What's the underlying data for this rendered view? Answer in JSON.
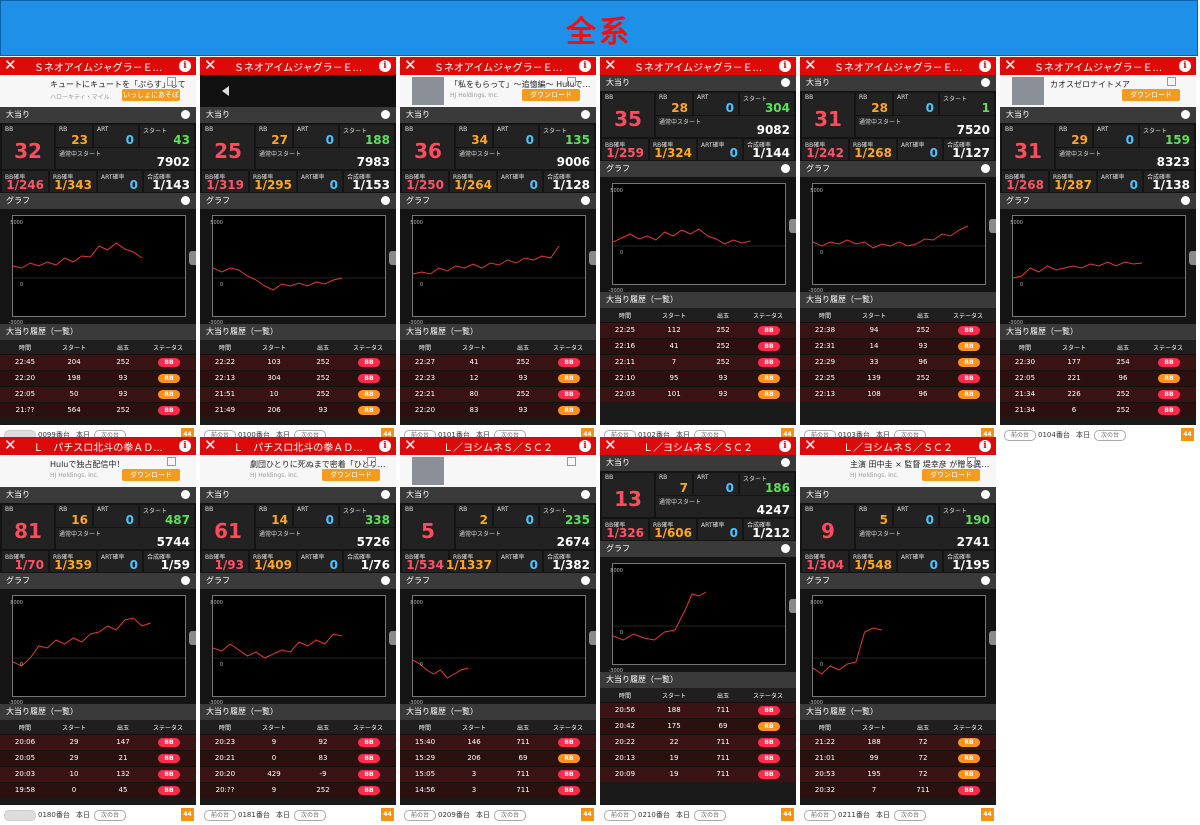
{
  "banner": {
    "title": "全系"
  },
  "labels": {
    "section_hit": "大当り",
    "section_graph": "グラフ",
    "section_history": "大当り履歴（一覧）",
    "bb": "BB",
    "rb": "RB",
    "art": "ART",
    "start": "スタート",
    "normal_start": "通常中スタート",
    "bb_rate": "BB確率",
    "rb_rate": "RB確率",
    "art_rate": "ART確率",
    "total_rate": "合成確率",
    "col_time": "時間",
    "col_start": "スタート",
    "col_out": "出玉",
    "col_status": "ステータス",
    "prev": "前の台",
    "next": "次の台",
    "today": "本日",
    "ad_download": "ダウンロード"
  },
  "colors": {
    "header": "#dd0a0a",
    "banner": "#1e90e8",
    "bb": "#ff2c4b",
    "rb": "#ff9122"
  },
  "panels": [
    {
      "title": "Ｓネオアイムジャグラ－Ｅ...",
      "ad": {
        "type": "text",
        "line1": "キュートにキュートを「ぷらす」して",
        "line2": "ハローキティ・マイル",
        "button": "いっしょにあそぼ"
      },
      "bb": "32",
      "rb": "23",
      "art": "0",
      "start": "43",
      "normal_start": "7902",
      "bb_rate": "1/246",
      "rb_rate": "1/343",
      "art_rate": "0",
      "total_rate": "1/143",
      "y_top": "5000",
      "y_mid": "0",
      "y_bot": "-3000",
      "graph": [
        [
          0,
          0.5
        ],
        [
          0.05,
          0.52
        ],
        [
          0.1,
          0.47
        ],
        [
          0.15,
          0.5
        ],
        [
          0.2,
          0.46
        ],
        [
          0.25,
          0.49
        ],
        [
          0.3,
          0.42
        ],
        [
          0.35,
          0.46
        ],
        [
          0.4,
          0.4
        ],
        [
          0.45,
          0.41
        ],
        [
          0.5,
          0.3
        ],
        [
          0.55,
          0.34
        ],
        [
          0.6,
          0.27
        ],
        [
          0.65,
          0.33
        ],
        [
          0.7,
          0.36
        ],
        [
          0.75,
          0.42
        ]
      ],
      "history": [
        [
          "22:45",
          "204",
          "252",
          "BB"
        ],
        [
          "22:20",
          "198",
          "93",
          "RB"
        ],
        [
          "22:05",
          "50",
          "93",
          "RB"
        ],
        [
          "21:??",
          "564",
          "252",
          "BB"
        ]
      ],
      "footer": {
        "machine": "0099番台",
        "left_blank": true
      }
    },
    {
      "title": "Ｓネオアイムジャグラ－Ｅ...",
      "ad": {
        "type": "video"
      },
      "bb": "25",
      "rb": "27",
      "art": "0",
      "start": "188",
      "normal_start": "7983",
      "bb_rate": "1/319",
      "rb_rate": "1/295",
      "art_rate": "0",
      "total_rate": "1/153",
      "y_top": "5000",
      "y_mid": "0",
      "y_bot": "-3000",
      "graph": [
        [
          0,
          0.52
        ],
        [
          0.05,
          0.56
        ],
        [
          0.1,
          0.52
        ],
        [
          0.15,
          0.54
        ],
        [
          0.2,
          0.6
        ],
        [
          0.25,
          0.64
        ],
        [
          0.3,
          0.7
        ],
        [
          0.35,
          0.74
        ],
        [
          0.4,
          0.68
        ],
        [
          0.45,
          0.7
        ],
        [
          0.5,
          0.67
        ],
        [
          0.55,
          0.7
        ],
        [
          0.6,
          0.66
        ],
        [
          0.65,
          0.68
        ],
        [
          0.7,
          0.64
        ],
        [
          0.75,
          0.62
        ]
      ],
      "history": [
        [
          "22:22",
          "103",
          "252",
          "BB"
        ],
        [
          "22:13",
          "304",
          "252",
          "BB"
        ],
        [
          "21:51",
          "10",
          "252",
          "RB"
        ],
        [
          "21:49",
          "206",
          "93",
          "RB"
        ]
      ],
      "footer": {
        "machine": "0100番台",
        "left_blank": false
      }
    },
    {
      "title": "Ｓネオアイムジャグラ－Ｅ...",
      "ad": {
        "type": "image",
        "line1": "「私をもらって」～追憶編～ Huluで…",
        "line2": "HJ Holdings, Inc.",
        "button": "ダウンロード"
      },
      "bb": "36",
      "rb": "34",
      "art": "0",
      "start": "135",
      "normal_start": "9006",
      "bb_rate": "1/250",
      "rb_rate": "1/264",
      "art_rate": "0",
      "total_rate": "1/128",
      "y_top": "5000",
      "y_mid": "0",
      "y_bot": "-3000",
      "graph": [
        [
          0,
          0.58
        ],
        [
          0.05,
          0.56
        ],
        [
          0.1,
          0.58
        ],
        [
          0.15,
          0.52
        ],
        [
          0.2,
          0.55
        ],
        [
          0.25,
          0.5
        ],
        [
          0.3,
          0.52
        ],
        [
          0.35,
          0.48
        ],
        [
          0.4,
          0.52
        ],
        [
          0.45,
          0.47
        ],
        [
          0.5,
          0.49
        ],
        [
          0.55,
          0.44
        ],
        [
          0.6,
          0.47
        ],
        [
          0.65,
          0.42
        ],
        [
          0.7,
          0.44
        ],
        [
          0.75,
          0.4
        ],
        [
          0.8,
          0.42
        ],
        [
          0.85,
          0.3
        ]
      ],
      "history": [
        [
          "22:27",
          "41",
          "252",
          "BB"
        ],
        [
          "22:23",
          "12",
          "93",
          "RB"
        ],
        [
          "22:21",
          "80",
          "252",
          "BB"
        ],
        [
          "22:20",
          "83",
          "93",
          "RB"
        ]
      ],
      "footer": {
        "machine": "0101番台",
        "left_blank": false
      }
    },
    {
      "title": "Ｓネオアイムジャグラ－Ｅ...",
      "ad": null,
      "bb": "35",
      "rb": "28",
      "art": "0",
      "start": "304",
      "normal_start": "9082",
      "bb_rate": "1/259",
      "rb_rate": "1/324",
      "art_rate": "0",
      "total_rate": "1/144",
      "y_top": "5000",
      "y_mid": "0",
      "y_bot": "-3000",
      "graph": [
        [
          0,
          0.58
        ],
        [
          0.05,
          0.54
        ],
        [
          0.1,
          0.5
        ],
        [
          0.15,
          0.55
        ],
        [
          0.2,
          0.52
        ],
        [
          0.25,
          0.56
        ],
        [
          0.3,
          0.48
        ],
        [
          0.35,
          0.52
        ],
        [
          0.4,
          0.46
        ],
        [
          0.45,
          0.5
        ],
        [
          0.5,
          0.45
        ],
        [
          0.55,
          0.52
        ],
        [
          0.6,
          0.55
        ],
        [
          0.65,
          0.6
        ],
        [
          0.7,
          0.56
        ],
        [
          0.75,
          0.59
        ],
        [
          0.8,
          0.57
        ]
      ],
      "history": [
        [
          "22:25",
          "112",
          "252",
          "BB"
        ],
        [
          "22:16",
          "41",
          "252",
          "BB"
        ],
        [
          "22:11",
          "7",
          "252",
          "BB"
        ],
        [
          "22:10",
          "95",
          "93",
          "RB"
        ],
        [
          "22:03",
          "101",
          "93",
          "RB"
        ]
      ],
      "footer": {
        "machine": "0102番台",
        "left_blank": false
      }
    },
    {
      "title": "Ｓネオアイムジャグラ－Ｅ...",
      "ad": null,
      "bb": "31",
      "rb": "28",
      "art": "0",
      "start": "1",
      "normal_start": "7520",
      "bb_rate": "1/242",
      "rb_rate": "1/268",
      "art_rate": "0",
      "total_rate": "1/127",
      "y_top": "5000",
      "y_mid": "0",
      "y_bot": "-3000",
      "graph": [
        [
          0,
          0.58
        ],
        [
          0.05,
          0.62
        ],
        [
          0.1,
          0.58
        ],
        [
          0.15,
          0.6
        ],
        [
          0.2,
          0.56
        ],
        [
          0.25,
          0.6
        ],
        [
          0.3,
          0.58
        ],
        [
          0.35,
          0.64
        ],
        [
          0.4,
          0.6
        ],
        [
          0.45,
          0.62
        ],
        [
          0.5,
          0.58
        ],
        [
          0.55,
          0.62
        ],
        [
          0.6,
          0.6
        ],
        [
          0.65,
          0.55
        ],
        [
          0.7,
          0.56
        ],
        [
          0.75,
          0.5
        ],
        [
          0.8,
          0.52
        ],
        [
          0.85,
          0.46
        ],
        [
          0.9,
          0.42
        ]
      ],
      "history": [
        [
          "22:38",
          "94",
          "252",
          "BB"
        ],
        [
          "22:31",
          "14",
          "93",
          "RB"
        ],
        [
          "22:29",
          "33",
          "96",
          "RB"
        ],
        [
          "22:25",
          "139",
          "252",
          "BB"
        ],
        [
          "22:13",
          "108",
          "96",
          "RB"
        ]
      ],
      "footer": {
        "machine": "0103番台",
        "left_blank": false
      }
    },
    {
      "title": "Ｓネオアイムジャグラ－Ｅ...",
      "ad": {
        "type": "image",
        "line1": "カオスゼロナイトメア",
        "line2": "",
        "button": "ダウンロード"
      },
      "bb": "31",
      "rb": "29",
      "art": "0",
      "start": "159",
      "normal_start": "8323",
      "bb_rate": "1/268",
      "rb_rate": "1/287",
      "art_rate": "0",
      "total_rate": "1/138",
      "y_top": "5000",
      "y_mid": "0",
      "y_bot": "-3000",
      "graph": [
        [
          0,
          0.62
        ],
        [
          0.05,
          0.6
        ],
        [
          0.1,
          0.52
        ],
        [
          0.15,
          0.56
        ],
        [
          0.2,
          0.5
        ],
        [
          0.25,
          0.54
        ],
        [
          0.3,
          0.52
        ],
        [
          0.35,
          0.5
        ],
        [
          0.4,
          0.52
        ],
        [
          0.45,
          0.48
        ],
        [
          0.5,
          0.5
        ],
        [
          0.55,
          0.46
        ],
        [
          0.6,
          0.5
        ],
        [
          0.65,
          0.46
        ],
        [
          0.7,
          0.48
        ],
        [
          0.75,
          0.47
        ]
      ],
      "history": [
        [
          "22:30",
          "177",
          "254",
          "BB"
        ],
        [
          "22:05",
          "221",
          "96",
          "RB"
        ],
        [
          "21:34",
          "226",
          "252",
          "BB"
        ],
        [
          "21:34",
          "6",
          "252",
          "BB"
        ]
      ],
      "footer": {
        "machine": "0104番台",
        "left_blank": false
      }
    },
    {
      "title": "Ｌ　パチスロ北斗の拳ＡＤ...",
      "ad": {
        "type": "text",
        "line1": "Huluで独占配信中！",
        "line2": "HJ Holdings, Inc.",
        "button": "ダウンロード"
      },
      "bb": "81",
      "rb": "16",
      "art": "0",
      "start": "487",
      "normal_start": "5744",
      "bb_rate": "1/70",
      "rb_rate": "1/359",
      "art_rate": "0",
      "total_rate": "1/59",
      "y_top": "8000",
      "y_mid": "0",
      "y_bot": "-3000",
      "graph": [
        [
          0,
          0.66
        ],
        [
          0.05,
          0.7
        ],
        [
          0.1,
          0.62
        ],
        [
          0.15,
          0.5
        ],
        [
          0.2,
          0.52
        ],
        [
          0.25,
          0.44
        ],
        [
          0.3,
          0.48
        ],
        [
          0.35,
          0.42
        ],
        [
          0.4,
          0.46
        ],
        [
          0.45,
          0.38
        ],
        [
          0.5,
          0.36
        ],
        [
          0.55,
          0.3
        ],
        [
          0.6,
          0.34
        ],
        [
          0.65,
          0.24
        ],
        [
          0.7,
          0.22
        ],
        [
          0.75,
          0.3
        ],
        [
          0.8,
          0.27
        ]
      ],
      "history": [
        [
          "20:06",
          "29",
          "147",
          "BB"
        ],
        [
          "20:05",
          "29",
          "21",
          "BB"
        ],
        [
          "20:03",
          "10",
          "132",
          "BB"
        ],
        [
          "19:58",
          "0",
          "45",
          "BB"
        ]
      ],
      "footer": {
        "machine": "0180番台",
        "left_blank": true
      }
    },
    {
      "title": "Ｌ　パチスロ北斗の拳ＡＤ...",
      "ad": {
        "type": "text",
        "line1": "劇団ひとりに死ぬまで密着「ひとり…",
        "line2": "HJ Holdings, Inc.",
        "button": "ダウンロード"
      },
      "bb": "61",
      "rb": "14",
      "art": "0",
      "start": "338",
      "normal_start": "5726",
      "bb_rate": "1/93",
      "rb_rate": "1/409",
      "art_rate": "0",
      "total_rate": "1/76",
      "y_top": "8000",
      "y_mid": "0",
      "y_bot": "-3000",
      "graph": [
        [
          0,
          0.52
        ],
        [
          0.05,
          0.55
        ],
        [
          0.1,
          0.48
        ],
        [
          0.15,
          0.54
        ],
        [
          0.2,
          0.6
        ],
        [
          0.25,
          0.56
        ],
        [
          0.3,
          0.62
        ],
        [
          0.35,
          0.58
        ],
        [
          0.4,
          0.54
        ],
        [
          0.45,
          0.56
        ],
        [
          0.5,
          0.46
        ],
        [
          0.55,
          0.5
        ],
        [
          0.6,
          0.44
        ],
        [
          0.65,
          0.48
        ],
        [
          0.7,
          0.38
        ],
        [
          0.75,
          0.4
        ]
      ],
      "history": [
        [
          "20:23",
          "9",
          "92",
          "BB"
        ],
        [
          "20:21",
          "0",
          "83",
          "BB"
        ],
        [
          "20:20",
          "429",
          "-9",
          "BB"
        ],
        [
          "20:??",
          "9",
          "252",
          "BB"
        ]
      ],
      "footer": {
        "machine": "0181番台",
        "left_blank": false
      }
    },
    {
      "title": "Ｌ／ヨシムネＳ／ＳＣ２",
      "ad": {
        "type": "image",
        "line1": "",
        "line2": "",
        "button": ""
      },
      "bb": "5",
      "rb": "2",
      "art": "0",
      "start": "235",
      "normal_start": "2674",
      "bb_rate": "1/534",
      "rb_rate": "1/1337",
      "art_rate": "0",
      "total_rate": "1/382",
      "y_top": "8000",
      "y_mid": "0",
      "y_bot": "-3000",
      "graph": [
        [
          0,
          0.64
        ],
        [
          0.04,
          0.68
        ],
        [
          0.08,
          0.74
        ],
        [
          0.12,
          0.78
        ],
        [
          0.16,
          0.74
        ],
        [
          0.2,
          0.82
        ],
        [
          0.24,
          0.78
        ],
        [
          0.28,
          0.74
        ],
        [
          0.32,
          0.72
        ]
      ],
      "history": [
        [
          "15:40",
          "146",
          "711",
          "BB"
        ],
        [
          "15:29",
          "206",
          "69",
          "RB"
        ],
        [
          "15:05",
          "3",
          "711",
          "BB"
        ],
        [
          "14:56",
          "3",
          "711",
          "BB"
        ]
      ],
      "footer": {
        "machine": "0209番台",
        "left_blank": false
      }
    },
    {
      "title": "Ｌ／ヨシムネＳ／ＳＣ２",
      "ad": null,
      "bb": "13",
      "rb": "7",
      "art": "0",
      "start": "186",
      "normal_start": "4247",
      "bb_rate": "1/326",
      "rb_rate": "1/606",
      "art_rate": "0",
      "total_rate": "1/212",
      "y_top": "8000",
      "y_mid": "0",
      "y_bot": "-3000",
      "graph": [
        [
          0,
          0.72
        ],
        [
          0.06,
          0.76
        ],
        [
          0.12,
          0.7
        ],
        [
          0.18,
          0.74
        ],
        [
          0.24,
          0.76
        ],
        [
          0.3,
          0.68
        ],
        [
          0.36,
          0.66
        ],
        [
          0.42,
          0.46
        ],
        [
          0.46,
          0.3
        ],
        [
          0.5,
          0.32
        ],
        [
          0.54,
          0.28
        ]
      ],
      "history": [
        [
          "20:56",
          "188",
          "711",
          "BB"
        ],
        [
          "20:42",
          "175",
          "69",
          "RB"
        ],
        [
          "20:22",
          "22",
          "711",
          "BB"
        ],
        [
          "20:13",
          "19",
          "711",
          "BB"
        ],
        [
          "20:09",
          "19",
          "711",
          "BB"
        ]
      ],
      "footer": {
        "machine": "0210番台",
        "left_blank": false
      }
    },
    {
      "title": "Ｌ／ヨシムネＳ／ＳＣ２",
      "ad": {
        "type": "text",
        "line1": "主演 田中圭 × 監督 堤幸彦 が贈る異…",
        "line2": "HJ Holdings, Inc.",
        "button": "ダウンロード"
      },
      "bb": "9",
      "rb": "5",
      "art": "0",
      "start": "190",
      "normal_start": "2741",
      "bb_rate": "1/304",
      "rb_rate": "1/548",
      "art_rate": "0",
      "total_rate": "1/195",
      "y_top": "8000",
      "y_mid": "0",
      "y_bot": "-3000",
      "graph": [
        [
          0,
          0.72
        ],
        [
          0.05,
          0.78
        ],
        [
          0.1,
          0.7
        ],
        [
          0.15,
          0.74
        ],
        [
          0.2,
          0.68
        ],
        [
          0.25,
          0.66
        ],
        [
          0.3,
          0.36
        ],
        [
          0.35,
          0.32
        ],
        [
          0.4,
          0.34
        ]
      ],
      "history": [
        [
          "21:22",
          "188",
          "72",
          "RB"
        ],
        [
          "21:01",
          "99",
          "72",
          "RB"
        ],
        [
          "20:53",
          "195",
          "72",
          "RB"
        ],
        [
          "20:32",
          "7",
          "711",
          "BB"
        ]
      ],
      "footer": {
        "machine": "0211番台",
        "left_blank": false
      }
    }
  ]
}
